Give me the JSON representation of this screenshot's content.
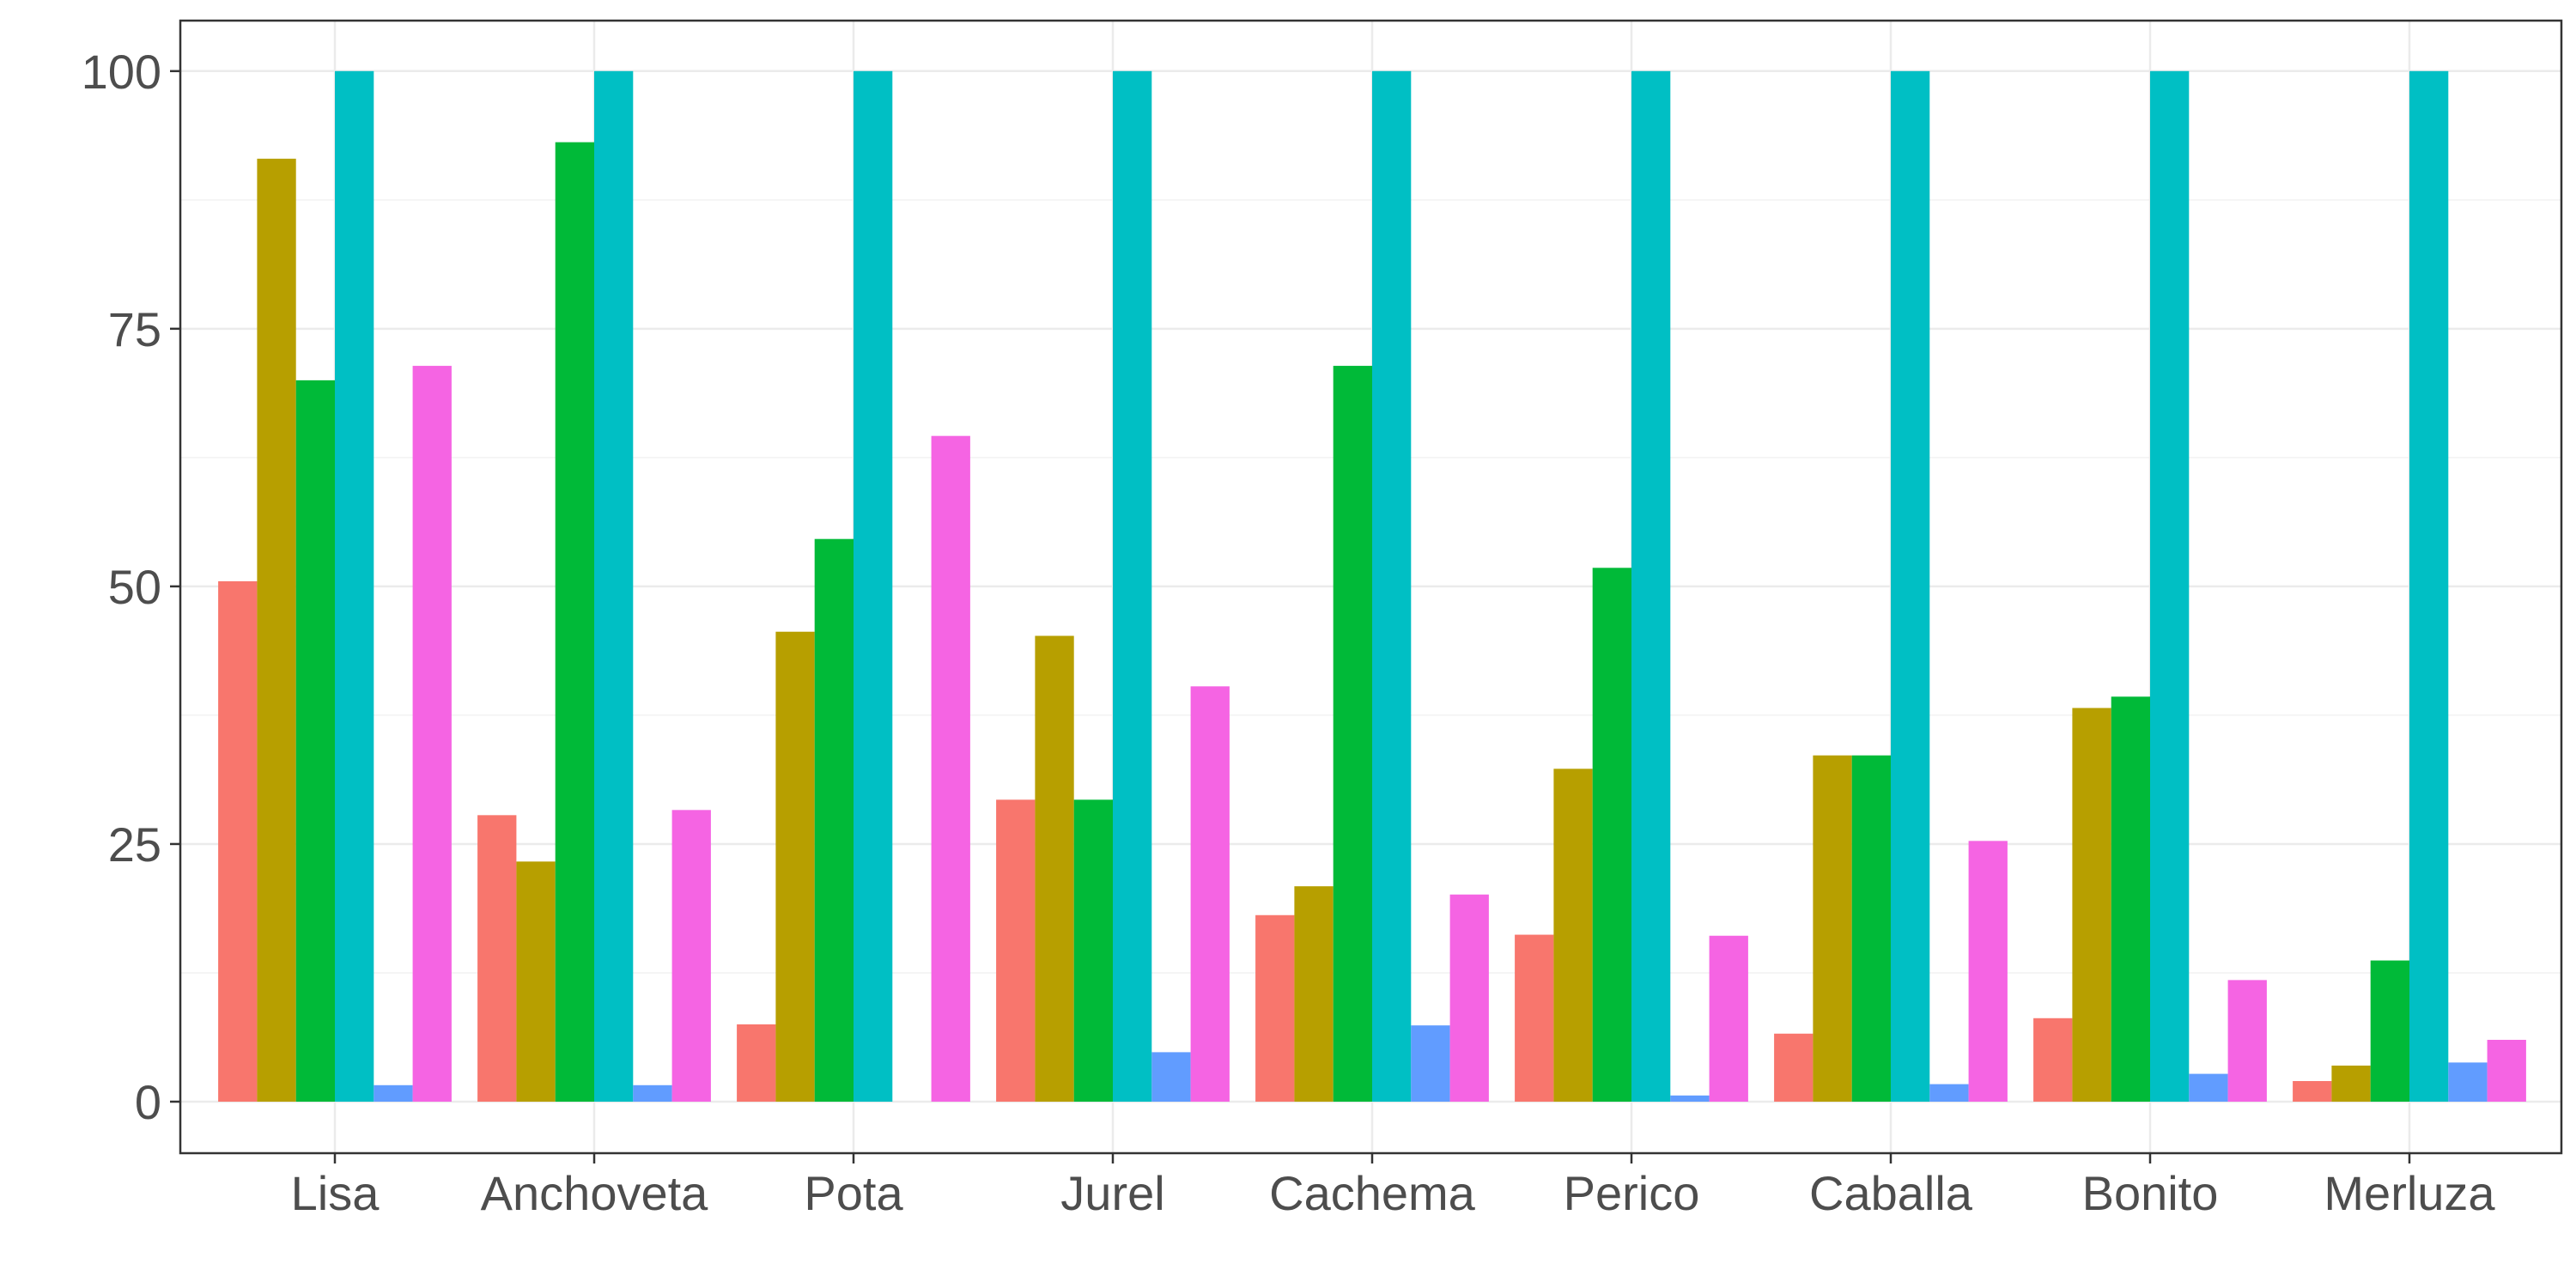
{
  "chart_data": {
    "type": "bar",
    "title": "",
    "xlabel": "",
    "ylabel": "",
    "categories": [
      "Lisa",
      "Anchoveta",
      "Pota",
      "Jurel",
      "Cachema",
      "Perico",
      "Caballa",
      "Bonito",
      "Merluza"
    ],
    "ylim": [
      -5,
      104.9
    ],
    "yticks": [
      0,
      25,
      50,
      75,
      100
    ],
    "grid": true,
    "legend": "none",
    "series": [
      {
        "color": "#F8766D",
        "values": [
          50.5,
          27.8,
          7.5,
          29.3,
          18.1,
          16.2,
          6.6,
          8.1,
          2.0
        ]
      },
      {
        "color": "#B79F00",
        "values": [
          91.5,
          23.3,
          45.6,
          45.2,
          20.9,
          32.3,
          33.6,
          38.2,
          3.5
        ]
      },
      {
        "color": "#00BA38",
        "values": [
          70.0,
          93.1,
          54.6,
          29.3,
          71.4,
          51.8,
          33.6,
          39.3,
          13.7
        ]
      },
      {
        "color": "#00BFC4",
        "values": [
          100,
          100,
          100,
          100,
          100,
          100,
          100,
          100,
          100
        ]
      },
      {
        "color": "#619CFF",
        "values": [
          1.6,
          1.6,
          0,
          4.8,
          7.4,
          0.6,
          1.7,
          2.7,
          3.8
        ]
      },
      {
        "color": "#F564E3",
        "values": [
          71.4,
          28.3,
          64.6,
          40.3,
          20.1,
          16.1,
          25.3,
          11.8,
          6.0
        ]
      }
    ]
  }
}
